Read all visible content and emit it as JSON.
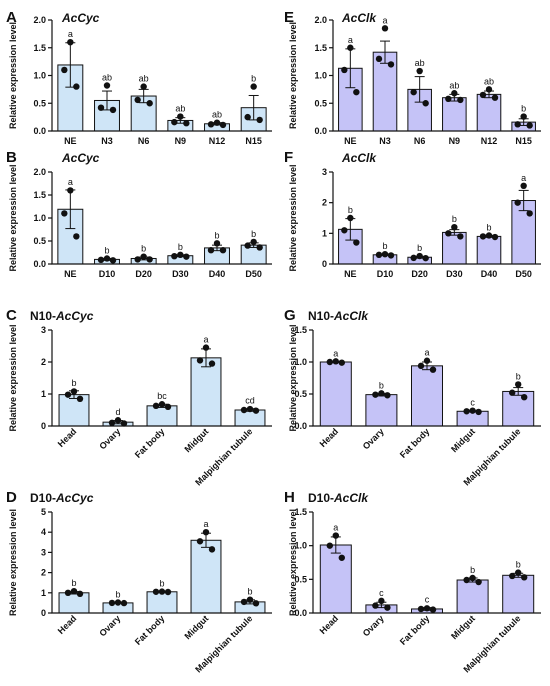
{
  "figure": {
    "panels": [
      {
        "letter": "A",
        "prefix": "",
        "gene": "AcCyc"
      },
      {
        "letter": "B",
        "prefix": "",
        "gene": "AcCyc"
      },
      {
        "letter": "C",
        "prefix": "N10-",
        "gene": "AcCyc"
      },
      {
        "letter": "D",
        "prefix": "D10-",
        "gene": "AcCyc"
      },
      {
        "letter": "E",
        "prefix": "",
        "gene": "AcClk"
      },
      {
        "letter": "F",
        "prefix": "",
        "gene": "AcClk"
      },
      {
        "letter": "G",
        "prefix": "N10-",
        "gene": "AcClk"
      },
      {
        "letter": "H",
        "prefix": "D10-",
        "gene": "AcClk"
      }
    ]
  },
  "chart_data": [
    {
      "type": "bar",
      "title": "AcCyc",
      "ylabel": "Relative expression level",
      "bar_color": "#cfe5f7",
      "ylim": [
        0,
        2.0
      ],
      "yticks": [
        "0.0",
        "0.5",
        "1.0",
        "1.5",
        "2.0"
      ],
      "ytick_values": [
        0,
        0.5,
        1.0,
        1.5,
        2.0
      ],
      "categories": [
        "NE",
        "N3",
        "N6",
        "N9",
        "N12",
        "N15"
      ],
      "values": [
        1.19,
        0.55,
        0.63,
        0.19,
        0.13,
        0.42
      ],
      "errors": [
        0.4,
        0.17,
        0.12,
        0.05,
        0.02,
        0.22
      ],
      "points": [
        [
          1.6,
          1.1,
          0.8
        ],
        [
          0.82,
          0.42,
          0.38
        ],
        [
          0.8,
          0.56,
          0.5
        ],
        [
          0.26,
          0.16,
          0.14
        ],
        [
          0.15,
          0.12,
          0.11
        ],
        [
          0.8,
          0.25,
          0.2
        ]
      ],
      "significance": [
        "a",
        "ab",
        "ab",
        "ab",
        "ab",
        "b"
      ],
      "rotate_labels": false
    },
    {
      "type": "bar",
      "title": "AcCyc",
      "ylabel": "Relative expression level",
      "bar_color": "#cfe5f7",
      "ylim": [
        0,
        2.0
      ],
      "yticks": [
        "0.0",
        "0.5",
        "1.0",
        "1.5",
        "2.0"
      ],
      "ytick_values": [
        0,
        0.5,
        1.0,
        1.5,
        2.0
      ],
      "categories": [
        "NE",
        "D10",
        "D20",
        "D30",
        "D40",
        "D50"
      ],
      "values": [
        1.19,
        0.1,
        0.12,
        0.18,
        0.35,
        0.41
      ],
      "errors": [
        0.42,
        0.02,
        0.03,
        0.02,
        0.06,
        0.05
      ],
      "points": [
        [
          1.6,
          1.1,
          0.6
        ],
        [
          0.12,
          0.09,
          0.08
        ],
        [
          0.16,
          0.1,
          0.1
        ],
        [
          0.2,
          0.17,
          0.16
        ],
        [
          0.45,
          0.3,
          0.3
        ],
        [
          0.48,
          0.4,
          0.36
        ]
      ],
      "significance": [
        "a",
        "b",
        "b",
        "b",
        "b",
        "b"
      ],
      "rotate_labels": false
    },
    {
      "type": "bar",
      "title": "N10-AcCyc",
      "ylabel": "Relative expression level",
      "bar_color": "#cfe5f7",
      "ylim": [
        0,
        3
      ],
      "yticks": [
        "0",
        "1",
        "2",
        "3"
      ],
      "ytick_values": [
        0,
        1,
        2,
        3
      ],
      "categories": [
        "Head",
        "Ovary",
        "Fat body",
        "Midgut",
        "Malpighian tubule"
      ],
      "values": [
        0.98,
        0.12,
        0.63,
        2.13,
        0.5
      ],
      "errors": [
        0.12,
        0.05,
        0.05,
        0.28,
        0.04
      ],
      "points": [
        [
          1.08,
          0.98,
          0.85
        ],
        [
          0.18,
          0.1,
          0.08
        ],
        [
          0.68,
          0.63,
          0.6
        ],
        [
          2.45,
          2.05,
          1.95
        ],
        [
          0.53,
          0.5,
          0.48
        ]
      ],
      "significance": [
        "b",
        "d",
        "bc",
        "a",
        "cd"
      ],
      "rotate_labels": true
    },
    {
      "type": "bar",
      "title": "D10-AcCyc",
      "ylabel": "Relative expression level",
      "bar_color": "#cfe5f7",
      "ylim": [
        0,
        5
      ],
      "yticks": [
        "0",
        "1",
        "2",
        "3",
        "4",
        "5"
      ],
      "ytick_values": [
        0,
        1,
        2,
        3,
        4,
        5
      ],
      "categories": [
        "Head",
        "Ovary",
        "Fat body",
        "Midgut",
        "Malpighian tubule"
      ],
      "values": [
        1.0,
        0.5,
        1.05,
        3.6,
        0.55
      ],
      "errors": [
        0.06,
        0.02,
        0.02,
        0.35,
        0.1
      ],
      "points": [
        [
          1.08,
          1.0,
          0.95
        ],
        [
          0.52,
          0.5,
          0.49
        ],
        [
          1.06,
          1.05,
          1.04
        ],
        [
          4.0,
          3.55,
          3.15
        ],
        [
          0.66,
          0.55,
          0.48
        ]
      ],
      "significance": [
        "b",
        "b",
        "b",
        "a",
        "b"
      ],
      "rotate_labels": true
    },
    {
      "type": "bar",
      "title": "AcClk",
      "ylabel": "Relative expression level",
      "bar_color": "#c5c3f7",
      "ylim": [
        0,
        2.0
      ],
      "yticks": [
        "0.0",
        "0.5",
        "1.0",
        "1.5",
        "2.0"
      ],
      "ytick_values": [
        0,
        0.5,
        1.0,
        1.5,
        2.0
      ],
      "categories": [
        "NE",
        "N3",
        "N6",
        "N9",
        "N12",
        "N15"
      ],
      "values": [
        1.13,
        1.42,
        0.75,
        0.6,
        0.66,
        0.16
      ],
      "errors": [
        0.35,
        0.2,
        0.23,
        0.06,
        0.06,
        0.06
      ],
      "points": [
        [
          1.5,
          1.1,
          0.7
        ],
        [
          1.85,
          1.3,
          1.2
        ],
        [
          1.08,
          0.7,
          0.5
        ],
        [
          0.68,
          0.58,
          0.56
        ],
        [
          0.75,
          0.65,
          0.6
        ],
        [
          0.26,
          0.12,
          0.1
        ]
      ],
      "significance": [
        "a",
        "a",
        "ab",
        "ab",
        "ab",
        "b"
      ],
      "rotate_labels": false
    },
    {
      "type": "bar",
      "title": "AcClk",
      "ylabel": "Relative expression level",
      "bar_color": "#c5c3f7",
      "ylim": [
        0,
        3
      ],
      "yticks": [
        "0",
        "1",
        "2",
        "3"
      ],
      "ytick_values": [
        0,
        1,
        2,
        3
      ],
      "categories": [
        "NE",
        "D10",
        "D20",
        "D30",
        "D40",
        "D50"
      ],
      "values": [
        1.13,
        0.3,
        0.22,
        1.03,
        0.9,
        2.07
      ],
      "errors": [
        0.35,
        0.02,
        0.03,
        0.09,
        0.03,
        0.33
      ],
      "points": [
        [
          1.5,
          1.1,
          0.7
        ],
        [
          0.32,
          0.3,
          0.28
        ],
        [
          0.26,
          0.2,
          0.19
        ],
        [
          1.2,
          1.0,
          0.9
        ],
        [
          0.93,
          0.9,
          0.88
        ],
        [
          2.55,
          2.0,
          1.65
        ]
      ],
      "significance": [
        "b",
        "b",
        "b",
        "b",
        "b",
        "a"
      ],
      "rotate_labels": false
    },
    {
      "type": "bar",
      "title": "N10-AcClk",
      "ylabel": "Relative expression level",
      "bar_color": "#c5c3f7",
      "ylim": [
        0,
        1.5
      ],
      "yticks": [
        "0.0",
        "0.5",
        "1.0",
        "1.5"
      ],
      "ytick_values": [
        0,
        0.5,
        1.0,
        1.5
      ],
      "categories": [
        "Head",
        "Ovary",
        "Fat body",
        "Midgut",
        "Malpighian tubule"
      ],
      "values": [
        1.0,
        0.49,
        0.94,
        0.23,
        0.54
      ],
      "errors": [
        0.01,
        0.02,
        0.06,
        0.01,
        0.06
      ],
      "points": [
        [
          1.01,
          1.0,
          0.99
        ],
        [
          0.51,
          0.49,
          0.48
        ],
        [
          1.02,
          0.94,
          0.88
        ],
        [
          0.24,
          0.23,
          0.22
        ],
        [
          0.65,
          0.52,
          0.45
        ]
      ],
      "significance": [
        "a",
        "b",
        "a",
        "c",
        "b"
      ],
      "rotate_labels": true
    },
    {
      "type": "bar",
      "title": "D10-AcClk",
      "ylabel": "Relative expression level",
      "bar_color": "#c5c3f7",
      "ylim": [
        0,
        1.5
      ],
      "yticks": [
        "0.0",
        "0.5",
        "1.0",
        "1.5"
      ],
      "ytick_values": [
        0,
        0.5,
        1.0,
        1.5
      ],
      "categories": [
        "Head",
        "Ovary",
        "Fat body",
        "Midgut",
        "Malpighian tubule"
      ],
      "values": [
        1.01,
        0.12,
        0.06,
        0.49,
        0.56
      ],
      "errors": [
        0.12,
        0.04,
        0.02,
        0.03,
        0.03
      ],
      "points": [
        [
          1.15,
          1.0,
          0.82
        ],
        [
          0.18,
          0.11,
          0.08
        ],
        [
          0.07,
          0.06,
          0.05
        ],
        [
          0.52,
          0.49,
          0.46
        ],
        [
          0.6,
          0.55,
          0.53
        ]
      ],
      "significance": [
        "a",
        "c",
        "c",
        "b",
        "b"
      ],
      "rotate_labels": true
    }
  ]
}
